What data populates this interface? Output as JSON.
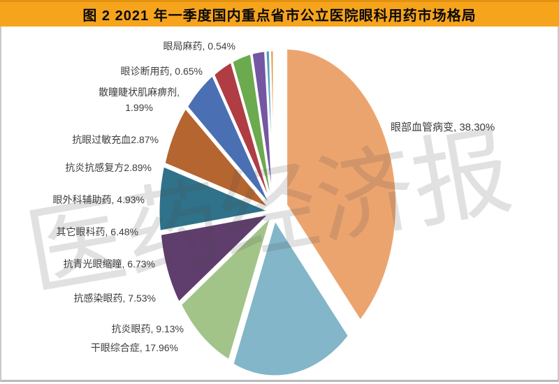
{
  "header": {
    "title": "图 2   2021 年一季度国内重点省市公立医院眼科用药市场格局",
    "bar_color": "#F7A41D"
  },
  "watermark": {
    "text": "医药经济报"
  },
  "chart_data": {
    "type": "pie",
    "title": "2021 年一季度国内重点省市公立医院眼科用药市场格局",
    "unit": "percent",
    "direction": "clockwise",
    "start_angle_deg": 0,
    "legend": "none",
    "labels_position": "outside",
    "total": 100.0,
    "slices": [
      {
        "key": "ocular-vascular-disease",
        "name": "眼部血管病变",
        "value": 38.3,
        "label": "眼部血管病变, 38.30%",
        "color": "#ECA46F"
      },
      {
        "key": "dry-eye-syndrome",
        "name": "干眼综合症",
        "value": 17.96,
        "label": "干眼综合症, 17.96%",
        "color": "#82B6C8"
      },
      {
        "key": "anti-inflammatory-eye-drug",
        "name": "抗炎眼药",
        "value": 9.13,
        "label": "抗炎眼药, 9.13%",
        "color": "#A3C489"
      },
      {
        "key": "anti-infective-eye-drug",
        "name": "抗感染眼药",
        "value": 7.53,
        "label": "抗感染眼药, 7.53%",
        "color": "#5F3D6C"
      },
      {
        "key": "anti-glaucoma-miotic",
        "name": "抗青光眼缩瞳",
        "value": 6.73,
        "label": "抗青光眼缩瞳, 6.73%",
        "color": "#2F728A"
      },
      {
        "key": "other-ophthalmic-drug",
        "name": "其它眼科药",
        "value": 6.48,
        "label": "其它眼科药, 6.48%",
        "color": "#B5652F"
      },
      {
        "key": "ocular-surgery-adjuvant",
        "name": "眼外科辅助药",
        "value": 4.93,
        "label": "眼外科辅助药, 4.93%",
        "color": "#4A70B3"
      },
      {
        "key": "anti-inflammatory-anti-infective-combo",
        "name": "抗炎抗感复方",
        "value": 2.89,
        "label": "抗炎抗感复方2.89%",
        "color": "#B03C44"
      },
      {
        "key": "anti-allergy-decongestant",
        "name": "抗眼过敏充血",
        "value": 2.87,
        "label": "抗眼过敏充血2.87%",
        "color": "#6BAA4E"
      },
      {
        "key": "mydriatic-cycloplegic",
        "name": "散瞳睫状肌麻痹剂",
        "value": 1.99,
        "label": "散瞳睫状肌麻痹剂,\n1.99%",
        "color": "#7456A2"
      },
      {
        "key": "ocular-diagnostic-drug",
        "name": "眼诊断用药",
        "value": 0.65,
        "label": "眼诊断用药, 0.65%",
        "color": "#4FA3C4"
      },
      {
        "key": "ocular-local-anesthetic",
        "name": "眼局麻药",
        "value": 0.54,
        "label": "眼局麻药, 0.54%",
        "color": "#EC953E"
      }
    ]
  }
}
